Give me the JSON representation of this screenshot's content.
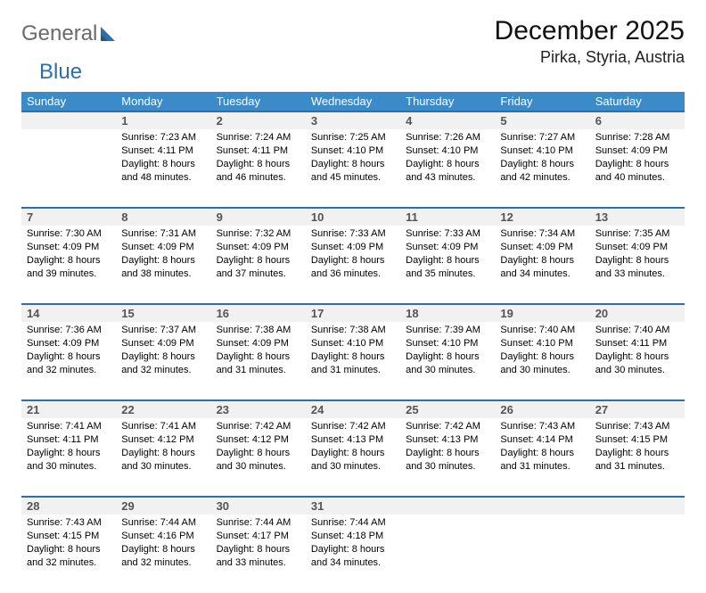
{
  "logo": {
    "text1": "General",
    "text2": "Blue"
  },
  "title": "December 2025",
  "location": "Pirka, Styria, Austria",
  "header_bg": "#3b8bc9",
  "rule_color": "#2f6fa8",
  "daynum_bg": "#f1f1f1",
  "weekdays": [
    "Sunday",
    "Monday",
    "Tuesday",
    "Wednesday",
    "Thursday",
    "Friday",
    "Saturday"
  ],
  "weeks": [
    [
      {
        "n": "",
        "sunrise": "",
        "sunset": "",
        "daylight": ""
      },
      {
        "n": "1",
        "sunrise": "Sunrise: 7:23 AM",
        "sunset": "Sunset: 4:11 PM",
        "daylight": "Daylight: 8 hours and 48 minutes."
      },
      {
        "n": "2",
        "sunrise": "Sunrise: 7:24 AM",
        "sunset": "Sunset: 4:11 PM",
        "daylight": "Daylight: 8 hours and 46 minutes."
      },
      {
        "n": "3",
        "sunrise": "Sunrise: 7:25 AM",
        "sunset": "Sunset: 4:10 PM",
        "daylight": "Daylight: 8 hours and 45 minutes."
      },
      {
        "n": "4",
        "sunrise": "Sunrise: 7:26 AM",
        "sunset": "Sunset: 4:10 PM",
        "daylight": "Daylight: 8 hours and 43 minutes."
      },
      {
        "n": "5",
        "sunrise": "Sunrise: 7:27 AM",
        "sunset": "Sunset: 4:10 PM",
        "daylight": "Daylight: 8 hours and 42 minutes."
      },
      {
        "n": "6",
        "sunrise": "Sunrise: 7:28 AM",
        "sunset": "Sunset: 4:09 PM",
        "daylight": "Daylight: 8 hours and 40 minutes."
      }
    ],
    [
      {
        "n": "7",
        "sunrise": "Sunrise: 7:30 AM",
        "sunset": "Sunset: 4:09 PM",
        "daylight": "Daylight: 8 hours and 39 minutes."
      },
      {
        "n": "8",
        "sunrise": "Sunrise: 7:31 AM",
        "sunset": "Sunset: 4:09 PM",
        "daylight": "Daylight: 8 hours and 38 minutes."
      },
      {
        "n": "9",
        "sunrise": "Sunrise: 7:32 AM",
        "sunset": "Sunset: 4:09 PM",
        "daylight": "Daylight: 8 hours and 37 minutes."
      },
      {
        "n": "10",
        "sunrise": "Sunrise: 7:33 AM",
        "sunset": "Sunset: 4:09 PM",
        "daylight": "Daylight: 8 hours and 36 minutes."
      },
      {
        "n": "11",
        "sunrise": "Sunrise: 7:33 AM",
        "sunset": "Sunset: 4:09 PM",
        "daylight": "Daylight: 8 hours and 35 minutes."
      },
      {
        "n": "12",
        "sunrise": "Sunrise: 7:34 AM",
        "sunset": "Sunset: 4:09 PM",
        "daylight": "Daylight: 8 hours and 34 minutes."
      },
      {
        "n": "13",
        "sunrise": "Sunrise: 7:35 AM",
        "sunset": "Sunset: 4:09 PM",
        "daylight": "Daylight: 8 hours and 33 minutes."
      }
    ],
    [
      {
        "n": "14",
        "sunrise": "Sunrise: 7:36 AM",
        "sunset": "Sunset: 4:09 PM",
        "daylight": "Daylight: 8 hours and 32 minutes."
      },
      {
        "n": "15",
        "sunrise": "Sunrise: 7:37 AM",
        "sunset": "Sunset: 4:09 PM",
        "daylight": "Daylight: 8 hours and 32 minutes."
      },
      {
        "n": "16",
        "sunrise": "Sunrise: 7:38 AM",
        "sunset": "Sunset: 4:09 PM",
        "daylight": "Daylight: 8 hours and 31 minutes."
      },
      {
        "n": "17",
        "sunrise": "Sunrise: 7:38 AM",
        "sunset": "Sunset: 4:10 PM",
        "daylight": "Daylight: 8 hours and 31 minutes."
      },
      {
        "n": "18",
        "sunrise": "Sunrise: 7:39 AM",
        "sunset": "Sunset: 4:10 PM",
        "daylight": "Daylight: 8 hours and 30 minutes."
      },
      {
        "n": "19",
        "sunrise": "Sunrise: 7:40 AM",
        "sunset": "Sunset: 4:10 PM",
        "daylight": "Daylight: 8 hours and 30 minutes."
      },
      {
        "n": "20",
        "sunrise": "Sunrise: 7:40 AM",
        "sunset": "Sunset: 4:11 PM",
        "daylight": "Daylight: 8 hours and 30 minutes."
      }
    ],
    [
      {
        "n": "21",
        "sunrise": "Sunrise: 7:41 AM",
        "sunset": "Sunset: 4:11 PM",
        "daylight": "Daylight: 8 hours and 30 minutes."
      },
      {
        "n": "22",
        "sunrise": "Sunrise: 7:41 AM",
        "sunset": "Sunset: 4:12 PM",
        "daylight": "Daylight: 8 hours and 30 minutes."
      },
      {
        "n": "23",
        "sunrise": "Sunrise: 7:42 AM",
        "sunset": "Sunset: 4:12 PM",
        "daylight": "Daylight: 8 hours and 30 minutes."
      },
      {
        "n": "24",
        "sunrise": "Sunrise: 7:42 AM",
        "sunset": "Sunset: 4:13 PM",
        "daylight": "Daylight: 8 hours and 30 minutes."
      },
      {
        "n": "25",
        "sunrise": "Sunrise: 7:42 AM",
        "sunset": "Sunset: 4:13 PM",
        "daylight": "Daylight: 8 hours and 30 minutes."
      },
      {
        "n": "26",
        "sunrise": "Sunrise: 7:43 AM",
        "sunset": "Sunset: 4:14 PM",
        "daylight": "Daylight: 8 hours and 31 minutes."
      },
      {
        "n": "27",
        "sunrise": "Sunrise: 7:43 AM",
        "sunset": "Sunset: 4:15 PM",
        "daylight": "Daylight: 8 hours and 31 minutes."
      }
    ],
    [
      {
        "n": "28",
        "sunrise": "Sunrise: 7:43 AM",
        "sunset": "Sunset: 4:15 PM",
        "daylight": "Daylight: 8 hours and 32 minutes."
      },
      {
        "n": "29",
        "sunrise": "Sunrise: 7:44 AM",
        "sunset": "Sunset: 4:16 PM",
        "daylight": "Daylight: 8 hours and 32 minutes."
      },
      {
        "n": "30",
        "sunrise": "Sunrise: 7:44 AM",
        "sunset": "Sunset: 4:17 PM",
        "daylight": "Daylight: 8 hours and 33 minutes."
      },
      {
        "n": "31",
        "sunrise": "Sunrise: 7:44 AM",
        "sunset": "Sunset: 4:18 PM",
        "daylight": "Daylight: 8 hours and 34 minutes."
      },
      {
        "n": "",
        "sunrise": "",
        "sunset": "",
        "daylight": ""
      },
      {
        "n": "",
        "sunrise": "",
        "sunset": "",
        "daylight": ""
      },
      {
        "n": "",
        "sunrise": "",
        "sunset": "",
        "daylight": ""
      }
    ]
  ]
}
